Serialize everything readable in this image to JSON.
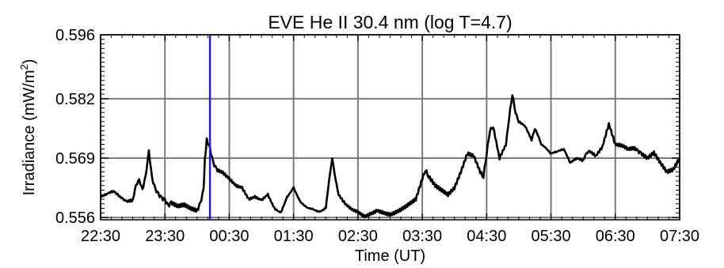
{
  "chart_data": {
    "type": "line",
    "title": "EVE He II 30.4 nm (log T=4.7)",
    "xlabel": "Time (UT)",
    "ylabel": "Irradiance (mW/m²)",
    "ylabel_parts": {
      "main": "Irradiance (mW/m",
      "sup": "2",
      "close": ")"
    },
    "ylim": [
      0.5555,
      0.596
    ],
    "xlim_hours": [
      22.5,
      31.5
    ],
    "y_ticks": [
      "0.556",
      "0.569",
      "0.582",
      "0.596"
    ],
    "y_tick_values": [
      0.556,
      0.569,
      0.582,
      0.596
    ],
    "x_ticks": [
      "22:30",
      "23:30",
      "00:30",
      "01:30",
      "02:30",
      "03:30",
      "04:30",
      "05:30",
      "06:30",
      "07:30"
    ],
    "x_tick_hours": [
      22.5,
      23.5,
      24.5,
      25.5,
      26.5,
      27.5,
      28.5,
      29.5,
      30.5,
      31.5
    ],
    "grid": true,
    "marker_line": {
      "x_hour": 24.2,
      "color": "#1a1adc"
    },
    "series": [
      {
        "color": "#000000",
        "x_hours": [
          22.5,
          22.6,
          22.7,
          22.8,
          22.85,
          22.9,
          23.0,
          23.05,
          23.1,
          23.15,
          23.2,
          23.25,
          23.3,
          23.35,
          23.4,
          23.45,
          23.5,
          23.55,
          23.6,
          23.7,
          23.8,
          23.9,
          24.0,
          24.05,
          24.1,
          24.12,
          24.15,
          24.2,
          24.25,
          24.3,
          24.4,
          24.5,
          24.6,
          24.7,
          24.8,
          24.9,
          25.0,
          25.1,
          25.2,
          25.3,
          25.4,
          25.5,
          25.6,
          25.7,
          25.8,
          25.9,
          26.0,
          26.05,
          26.1,
          26.15,
          26.2,
          26.3,
          26.4,
          26.5,
          26.6,
          26.7,
          26.8,
          26.9,
          27.0,
          27.1,
          27.2,
          27.3,
          27.4,
          27.5,
          27.55,
          27.6,
          27.7,
          27.8,
          27.9,
          28.0,
          28.1,
          28.2,
          28.3,
          28.4,
          28.45,
          28.5,
          28.55,
          28.6,
          28.7,
          28.8,
          28.85,
          28.9,
          28.95,
          29.0,
          29.1,
          29.2,
          29.25,
          29.3,
          29.35,
          29.4,
          29.5,
          29.6,
          29.7,
          29.8,
          29.9,
          30.0,
          30.05,
          30.1,
          30.2,
          30.3,
          30.4,
          30.5,
          30.6,
          30.7,
          30.8,
          30.85,
          30.9,
          31.0,
          31.1,
          31.2,
          31.3,
          31.4,
          31.5
        ],
        "values": [
          0.5605,
          0.5612,
          0.5618,
          0.5606,
          0.56,
          0.5595,
          0.5598,
          0.563,
          0.5642,
          0.562,
          0.565,
          0.5705,
          0.5645,
          0.5622,
          0.561,
          0.5602,
          0.5598,
          0.5585,
          0.5592,
          0.5585,
          0.5588,
          0.558,
          0.5575,
          0.559,
          0.562,
          0.5685,
          0.573,
          0.571,
          0.568,
          0.5665,
          0.5658,
          0.5645,
          0.563,
          0.5625,
          0.56,
          0.5605,
          0.5598,
          0.561,
          0.558,
          0.557,
          0.5605,
          0.5625,
          0.5595,
          0.5582,
          0.5578,
          0.5572,
          0.558,
          0.564,
          0.569,
          0.5645,
          0.561,
          0.559,
          0.5578,
          0.5572,
          0.5562,
          0.5568,
          0.5575,
          0.557,
          0.5566,
          0.5572,
          0.558,
          0.559,
          0.56,
          0.5645,
          0.5665,
          0.565,
          0.563,
          0.562,
          0.561,
          0.5625,
          0.566,
          0.57,
          0.5695,
          0.566,
          0.565,
          0.57,
          0.575,
          0.576,
          0.569,
          0.572,
          0.578,
          0.583,
          0.579,
          0.577,
          0.576,
          0.573,
          0.5755,
          0.574,
          0.572,
          0.5715,
          0.57,
          0.5705,
          0.571,
          0.568,
          0.569,
          0.5685,
          0.57,
          0.5705,
          0.5695,
          0.5715,
          0.5765,
          0.572,
          0.5718,
          0.571,
          0.5712,
          0.5705,
          0.57,
          0.569,
          0.5702,
          0.568,
          0.566,
          0.5665,
          0.569
        ]
      }
    ]
  }
}
